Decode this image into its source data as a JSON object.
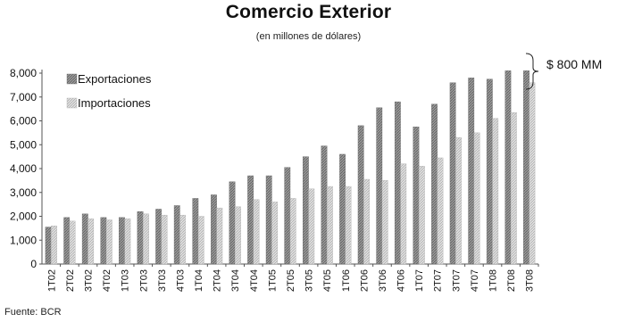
{
  "chart_data": {
    "type": "bar",
    "title": "Comercio Exterior",
    "subtitle": "(en millones de dólares)",
    "xlabel": "",
    "ylabel": "",
    "ylim": [
      0,
      8000
    ],
    "yticks": [
      "0",
      "1,000",
      "2,000",
      "3,000",
      "4,000",
      "5,000",
      "6,000",
      "7,000",
      "8,000"
    ],
    "categories": [
      "1T02",
      "2T02",
      "3T02",
      "4T02",
      "1T03",
      "2T03",
      "3T03",
      "4T03",
      "1T04",
      "2T04",
      "3T04",
      "4T04",
      "1T05",
      "2T05",
      "3T05",
      "4T05",
      "1T06",
      "2T06",
      "3T06",
      "4T06",
      "1T07",
      "2T07",
      "3T07",
      "4T07",
      "1T08",
      "2T08",
      "3T08"
    ],
    "series": [
      {
        "name": "Exportaciones",
        "color": "#8c8c8c",
        "values": [
          1550,
          1950,
          2100,
          1950,
          1950,
          2200,
          2300,
          2450,
          2750,
          2900,
          3450,
          3700,
          3700,
          4050,
          4500,
          4950,
          4600,
          5800,
          6550,
          6800,
          5750,
          6700,
          7600,
          7800,
          7750,
          8100,
          8100
        ]
      },
      {
        "name": "Importaciones",
        "color": "#c8c8c8",
        "values": [
          1600,
          1800,
          1900,
          1850,
          1900,
          2100,
          2050,
          2050,
          2000,
          2350,
          2400,
          2700,
          2600,
          2750,
          3150,
          3250,
          3250,
          3550,
          3500,
          4200,
          4100,
          4450,
          5300,
          5500,
          6100,
          6350,
          7600
        ]
      }
    ],
    "legend_position": "top-left",
    "grid": false,
    "annotation": "$ 800 MM",
    "source": "Fuente: BCR"
  }
}
